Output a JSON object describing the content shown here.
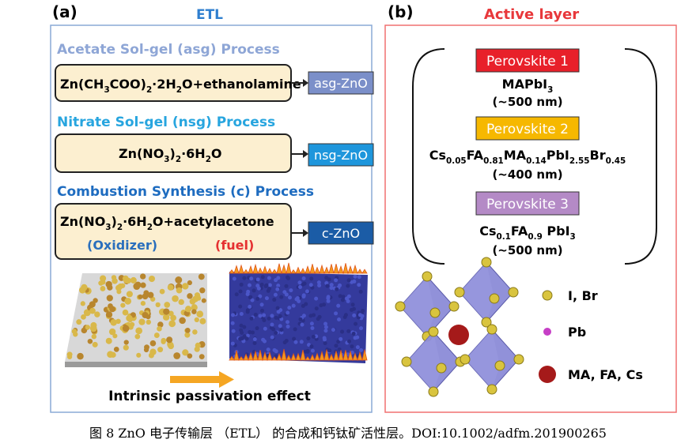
{
  "panel_a": {
    "label": "(a)",
    "title": "ETL",
    "processes": [
      {
        "name": "Acetate Sol-gel (asg) Process",
        "formula": [
          "Zn(CH",
          "3",
          "COO)",
          "2",
          "·2H",
          "2",
          "O+ethanolamine"
        ],
        "product": "asg-ZnO"
      },
      {
        "name": "Nitrate Sol-gel (nsg) Process",
        "formula": [
          "Zn(NO",
          "3",
          ")",
          "2",
          "·6H",
          "2",
          "O"
        ],
        "product": "nsg-ZnO"
      },
      {
        "name": "Combustion Synthesis (c) Process",
        "formula": [
          "Zn(NO",
          "3",
          ")",
          "2",
          "·6H",
          "2",
          "O+acetylacetone"
        ],
        "roles": [
          "(Oxidizer)",
          "(fuel)"
        ],
        "product": "c-ZnO"
      }
    ],
    "effect": "Intrinsic passivation effect"
  },
  "panel_b": {
    "label": "(b)",
    "title": "Active layer",
    "perovskites": [
      {
        "name": "Perovskite 1",
        "formula": [
          "MAPbI",
          "3"
        ],
        "thickness": "(~500 nm)"
      },
      {
        "name": "Perovskite 2",
        "formula": [
          "Cs",
          "0.05",
          "FA",
          "0.81",
          "MA",
          "0.14",
          "PbI",
          "2.55",
          "Br",
          "0.45"
        ],
        "thickness": "(~400 nm)"
      },
      {
        "name": "Perovskite 3",
        "formula": [
          "Cs",
          "0.1",
          "FA",
          "0.9",
          " PbI",
          "3"
        ],
        "thickness": "(~500 nm)"
      }
    ],
    "legend": [
      "I, Br",
      "Pb",
      "MA, FA, Cs"
    ]
  },
  "caption": "图 8 ZnO 电子传输层 （ETL） 的合成和钙钛矿活性层。DOI:10.1002/adfm.201900265"
}
